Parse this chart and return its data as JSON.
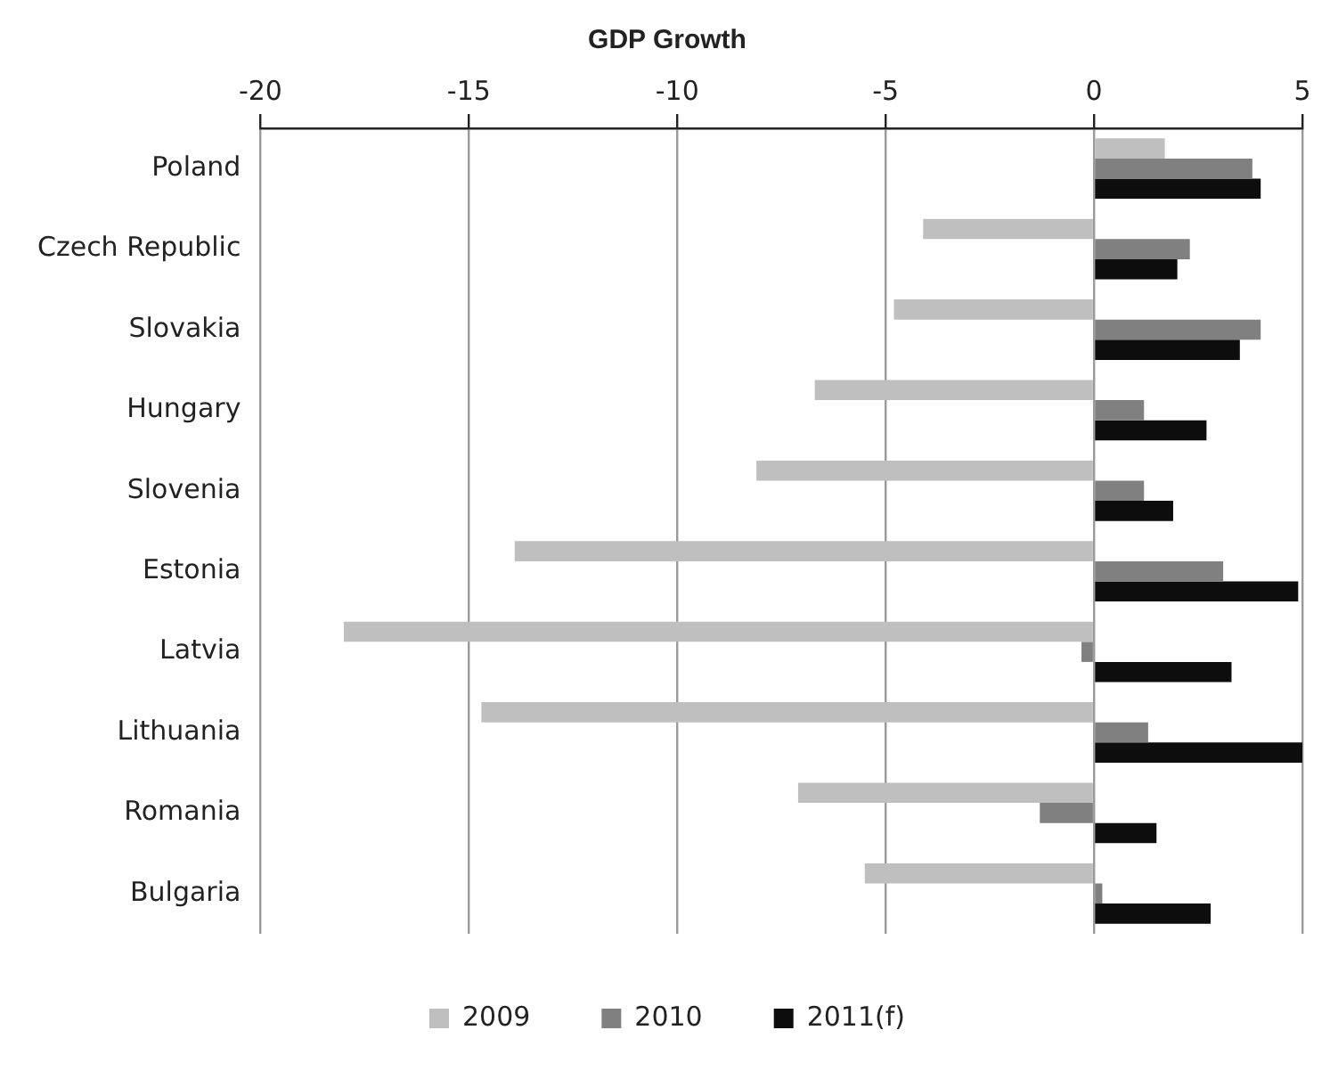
{
  "chart_data": {
    "type": "bar",
    "orientation": "horizontal",
    "title": "GDP Growth",
    "categories": [
      "Poland",
      "Czech Republic",
      "Slovakia",
      "Hungary",
      "Slovenia",
      "Estonia",
      "Latvia",
      "Lithuania",
      "Romania",
      "Bulgaria"
    ],
    "series": [
      {
        "name": "2009",
        "color": "#bfbfbf",
        "values": [
          1.7,
          -4.1,
          -4.8,
          -6.7,
          -8.1,
          -13.9,
          -18.0,
          -14.7,
          -7.1,
          -5.5
        ]
      },
      {
        "name": "2010",
        "color": "#808080",
        "values": [
          3.8,
          2.3,
          4.0,
          1.2,
          1.2,
          3.1,
          -0.3,
          1.3,
          -1.3,
          0.2
        ]
      },
      {
        "name": "2011(f)",
        "color": "#0d0d0d",
        "values": [
          4.0,
          2.0,
          3.5,
          2.7,
          1.9,
          4.9,
          3.3,
          5.0,
          1.5,
          2.8
        ]
      }
    ],
    "xlim": [
      -20,
      5
    ],
    "xticks": [
      -20,
      -15,
      -10,
      -5,
      0,
      5
    ],
    "grid": "x",
    "legend": "bottom"
  }
}
